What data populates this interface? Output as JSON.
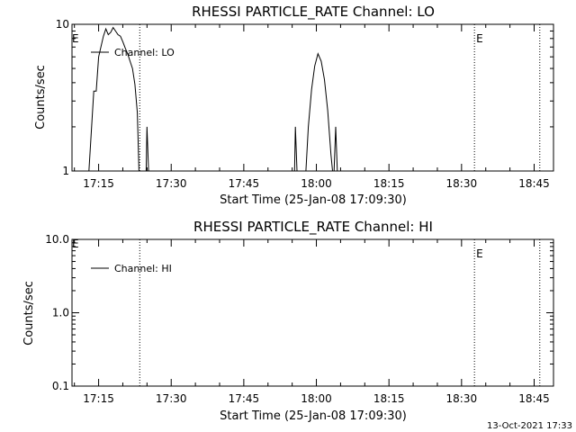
{
  "footer": {
    "timestamp": "13-Oct-2021 17:33"
  },
  "chart_data": [
    {
      "type": "line",
      "title": "RHESSI PARTICLE_RATE Channel: LO",
      "xlabel": "Start Time (25-Jan-08 17:09:30)",
      "ylabel": "Counts/sec",
      "y_scale": "log",
      "ylim": [
        1,
        10
      ],
      "y_ticks": [
        {
          "value": 1,
          "label": "1"
        },
        {
          "value": 10,
          "label": "10"
        }
      ],
      "xlim": [
        "17:09:30",
        "18:49:00"
      ],
      "x_ticks": [
        "17:15",
        "17:30",
        "17:45",
        "18:00",
        "18:15",
        "18:30",
        "18:45"
      ],
      "legend": {
        "label": "Channel: LO",
        "placement": "top-left"
      },
      "markers": [
        {
          "time": "17:23:30",
          "label": ""
        },
        {
          "time": "18:32:40",
          "label": "E"
        },
        {
          "time": "18:46:10",
          "label": ""
        }
      ],
      "corner_label": "E",
      "series": [
        {
          "name": "Channel: LO",
          "segments": [
            [
              [
                "17:13:00",
                1.0
              ],
              [
                "17:14:00",
                3.5
              ],
              [
                "17:14:30",
                3.5
              ],
              [
                "17:15:00",
                6.0
              ],
              [
                "17:16:00",
                8.3
              ],
              [
                "17:16:30",
                9.3
              ],
              [
                "17:17:00",
                8.5
              ],
              [
                "17:17:30",
                8.8
              ],
              [
                "17:18:00",
                9.5
              ],
              [
                "17:18:30",
                9.0
              ],
              [
                "17:19:00",
                8.5
              ],
              [
                "17:19:30",
                8.3
              ],
              [
                "17:20:00",
                7.6
              ],
              [
                "17:20:30",
                6.9
              ],
              [
                "17:21:00",
                6.3
              ],
              [
                "17:21:30",
                5.6
              ],
              [
                "17:22:00",
                5.0
              ],
              [
                "17:22:30",
                3.9
              ],
              [
                "17:23:00",
                2.5
              ],
              [
                "17:23:20",
                1.0
              ]
            ],
            [
              [
                "17:24:50",
                1.0
              ],
              [
                "17:25:00",
                2.0
              ],
              [
                "17:25:20",
                1.0
              ]
            ],
            [
              [
                "17:55:30",
                1.0
              ],
              [
                "17:55:40",
                2.0
              ],
              [
                "17:56:00",
                1.0
              ]
            ],
            [
              [
                "17:57:50",
                1.0
              ],
              [
                "17:58:20",
                2.0
              ],
              [
                "17:59:00",
                3.6
              ],
              [
                "17:59:40",
                5.2
              ],
              [
                "18:00:20",
                6.3
              ],
              [
                "18:01:00",
                5.6
              ],
              [
                "18:01:40",
                4.2
              ],
              [
                "18:02:20",
                2.6
              ],
              [
                "18:03:00",
                1.3
              ],
              [
                "18:03:20",
                1.0
              ]
            ],
            [
              [
                "18:03:40",
                1.0
              ],
              [
                "18:04:00",
                2.0
              ],
              [
                "18:04:20",
                1.0
              ]
            ]
          ]
        }
      ]
    },
    {
      "type": "line",
      "title": "RHESSI PARTICLE_RATE Channel: HI",
      "xlabel": "Start Time (25-Jan-08 17:09:30)",
      "ylabel": "Counts/sec",
      "y_scale": "log",
      "ylim": [
        0.1,
        10
      ],
      "y_ticks": [
        {
          "value": 0.1,
          "label": "0.1"
        },
        {
          "value": 1,
          "label": "1.0"
        },
        {
          "value": 10,
          "label": "10.0"
        }
      ],
      "xlim": [
        "17:09:30",
        "18:49:00"
      ],
      "x_ticks": [
        "17:15",
        "17:30",
        "17:45",
        "18:00",
        "18:15",
        "18:30",
        "18:45"
      ],
      "legend": {
        "label": "Channel: HI",
        "placement": "top-left"
      },
      "markers": [
        {
          "time": "17:23:30",
          "label": ""
        },
        {
          "time": "18:32:40",
          "label": "E"
        },
        {
          "time": "18:46:10",
          "label": ""
        }
      ],
      "corner_label": "E",
      "series": [
        {
          "name": "Channel: HI",
          "segments": []
        }
      ]
    }
  ]
}
